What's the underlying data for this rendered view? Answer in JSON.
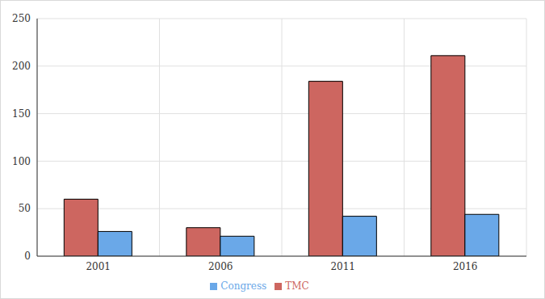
{
  "chart_data": {
    "type": "bar",
    "categories": [
      "2001",
      "2006",
      "2011",
      "2016"
    ],
    "series": [
      {
        "name": "TMC",
        "color": "#cd6660",
        "values": [
          60,
          30,
          184,
          211
        ]
      },
      {
        "name": "Congress",
        "color": "#6aa8e8",
        "values": [
          26,
          21,
          42,
          44
        ]
      }
    ],
    "ylim": [
      0,
      250
    ],
    "yticks": [
      0,
      50,
      100,
      150,
      200,
      250
    ],
    "grid": true,
    "legend": "bottom"
  }
}
